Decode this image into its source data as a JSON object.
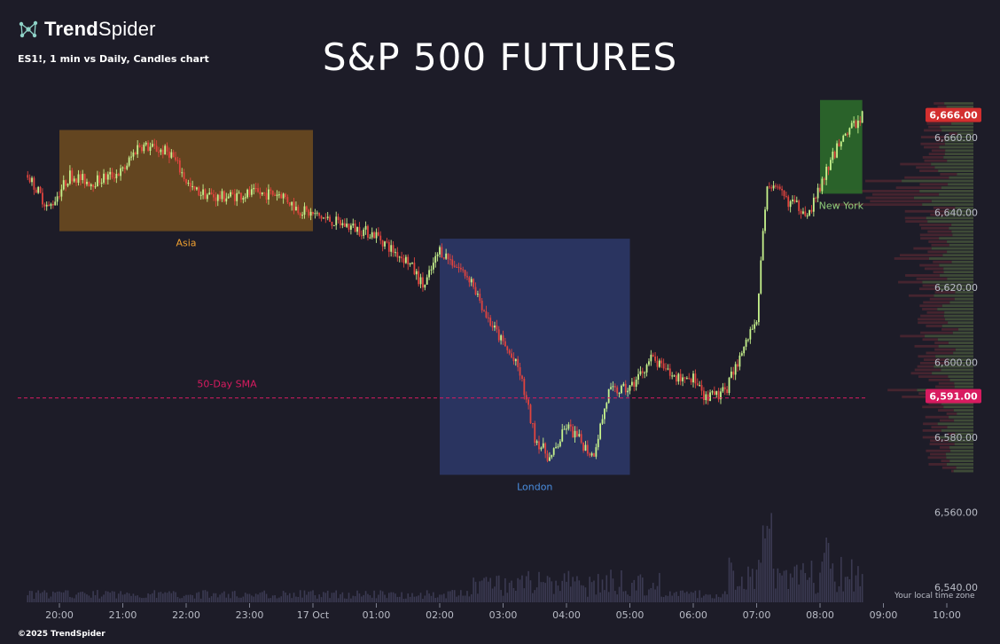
{
  "brand": {
    "name_bold": "Trend",
    "name_light": "Spider",
    "icon": "trendspider-network-icon"
  },
  "header": {
    "subtitle": "ES1!, 1 min vs Daily, Candles chart",
    "title": "S&P 500 FUTURES"
  },
  "footer": {
    "copyright": "©2025 TrendSpider",
    "timezone_note": "Your local time zone"
  },
  "colors": {
    "background": "#1d1c28",
    "up": "#c6f28c",
    "down": "#e0443e",
    "asia_box": "#6b4a1f",
    "london_box": "#2c3766",
    "newyork_box": "#2c6a2a",
    "sma": "#d81b60",
    "price_label": "#d32f2f"
  },
  "chart_data": {
    "type": "candlestick",
    "symbol": "ES1!",
    "timeframe": "1 min",
    "x_ticks": [
      "20:00",
      "21:00",
      "22:00",
      "23:00",
      "17 Oct",
      "01:00",
      "02:00",
      "03:00",
      "04:00",
      "05:00",
      "06:00",
      "07:00",
      "08:00",
      "09:00",
      "10:00"
    ],
    "y_ticks": [
      "6,660.00",
      "6,640.00",
      "6,620.00",
      "6,600.00",
      "6,580.00",
      "6,560.00",
      "6,540.00"
    ],
    "ylim": [
      6535,
      6672
    ],
    "price_path": [
      {
        "t": "19:30",
        "p": 6650
      },
      {
        "t": "19:50",
        "p": 6641
      },
      {
        "t": "20:10",
        "p": 6650
      },
      {
        "t": "20:30",
        "p": 6648
      },
      {
        "t": "21:00",
        "p": 6651
      },
      {
        "t": "21:15",
        "p": 6658
      },
      {
        "t": "21:45",
        "p": 6656
      },
      {
        "t": "22:05",
        "p": 6646
      },
      {
        "t": "22:30",
        "p": 6644
      },
      {
        "t": "23:00",
        "p": 6645
      },
      {
        "t": "23:30",
        "p": 6645
      },
      {
        "t": "23:45",
        "p": 6641
      },
      {
        "t": "00:15",
        "p": 6638
      },
      {
        "t": "01:00",
        "p": 6634
      },
      {
        "t": "01:15",
        "p": 6630
      },
      {
        "t": "01:30",
        "p": 6627
      },
      {
        "t": "01:45",
        "p": 6620
      },
      {
        "t": "02:00",
        "p": 6630
      },
      {
        "t": "02:30",
        "p": 6622
      },
      {
        "t": "02:45",
        "p": 6612
      },
      {
        "t": "03:15",
        "p": 6598
      },
      {
        "t": "03:30",
        "p": 6580
      },
      {
        "t": "03:45",
        "p": 6574
      },
      {
        "t": "04:00",
        "p": 6583
      },
      {
        "t": "04:10",
        "p": 6580
      },
      {
        "t": "04:25",
        "p": 6575
      },
      {
        "t": "04:40",
        "p": 6592
      },
      {
        "t": "05:00",
        "p": 6593
      },
      {
        "t": "05:20",
        "p": 6601
      },
      {
        "t": "05:40",
        "p": 6596
      },
      {
        "t": "06:00",
        "p": 6596
      },
      {
        "t": "06:10",
        "p": 6590
      },
      {
        "t": "06:30",
        "p": 6592
      },
      {
        "t": "06:45",
        "p": 6602
      },
      {
        "t": "07:00",
        "p": 6612
      },
      {
        "t": "07:10",
        "p": 6648
      },
      {
        "t": "07:30",
        "p": 6643
      },
      {
        "t": "07:50",
        "p": 6640
      },
      {
        "t": "08:05",
        "p": 6650
      },
      {
        "t": "08:20",
        "p": 6660
      },
      {
        "t": "08:35",
        "p": 6664
      },
      {
        "t": "08:40",
        "p": 6666
      }
    ],
    "sessions": [
      {
        "label": "Asia",
        "start": "20:00",
        "end": "00:00",
        "high": 6662,
        "low": 6635
      },
      {
        "label": "London",
        "start": "02:00",
        "end": "05:00",
        "high": 6633,
        "low": 6570
      },
      {
        "label": "New York",
        "start": "08:00",
        "end": "08:40",
        "high": 6670,
        "low": 6645
      }
    ],
    "sma": {
      "label": "50-Day SMA",
      "value": 6590.5
    },
    "price_labels": [
      {
        "label": "6,666.00",
        "value": 6666
      },
      {
        "label": "6,591.00",
        "value": 6591
      }
    ],
    "volume_profile": true,
    "volume_bars": true,
    "legend": "none",
    "grid": false
  }
}
